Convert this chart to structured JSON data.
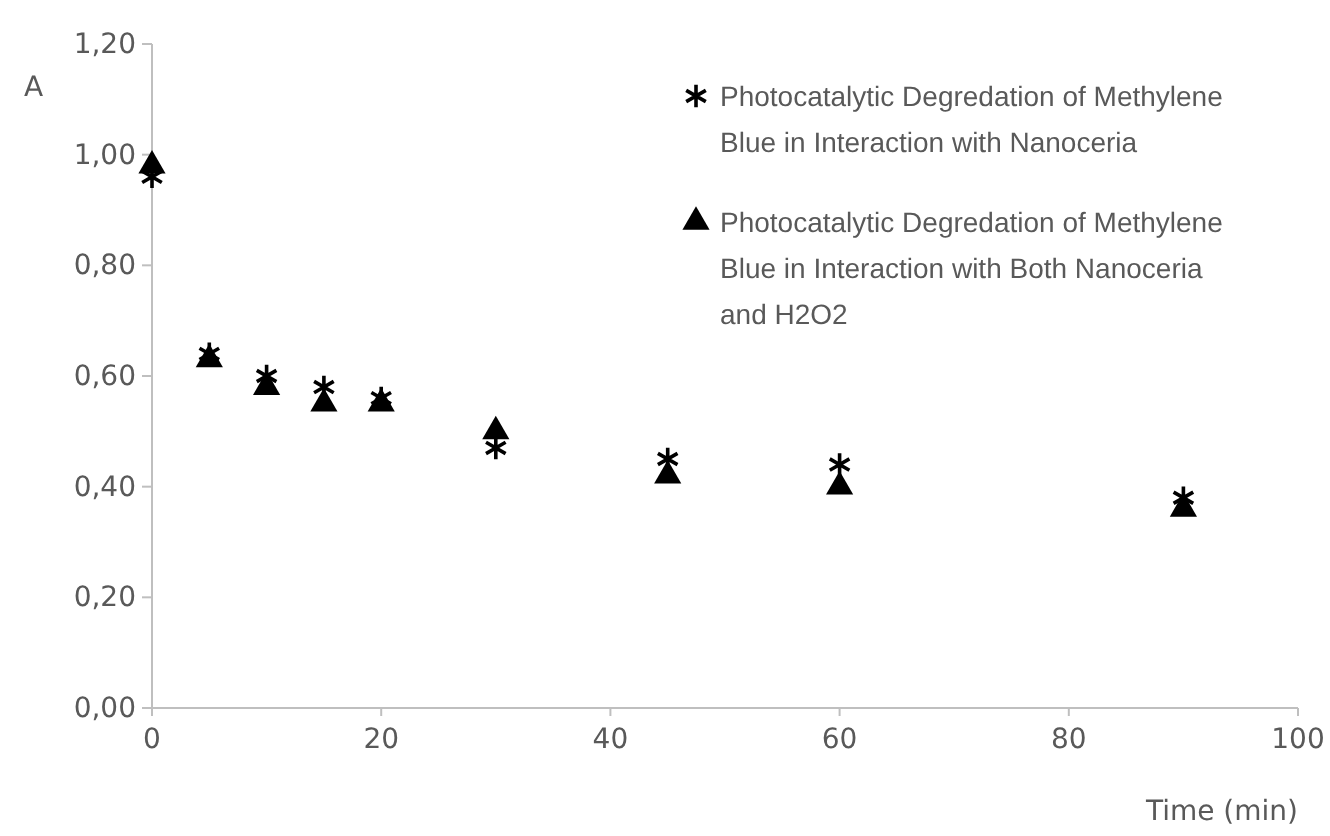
{
  "chart_data": {
    "type": "scatter",
    "xlabel": "Time (min)",
    "ylabel": "A",
    "xlim": [
      0,
      100
    ],
    "xticks": [
      0,
      20,
      40,
      60,
      80,
      100
    ],
    "ylim": [
      0,
      1.2
    ],
    "yticks": [
      {
        "value": 0,
        "label": "0,00"
      },
      {
        "value": 0.2,
        "label": "0,20"
      },
      {
        "value": 0.4,
        "label": "0,40"
      },
      {
        "value": 0.6,
        "label": "0,60"
      },
      {
        "value": 0.8,
        "label": "0,80"
      },
      {
        "value": 1.0,
        "label": "1,00"
      },
      {
        "value": 1.2,
        "label": "1,20"
      }
    ],
    "x": [
      0,
      5,
      10,
      15,
      20,
      30,
      45,
      60,
      90
    ],
    "series": [
      {
        "name": "Photocatalytic Degredation of Methylene Blue in Interaction with Nanoceria",
        "color": "#000000",
        "marker": "cross",
        "values": [
          0.96,
          0.64,
          0.6,
          0.58,
          0.56,
          0.47,
          0.45,
          0.44,
          0.38
        ]
      },
      {
        "name": "Photocatalytic Degredation of Methylene Blue in Interaction with Both Nanoceria and H2O2",
        "color": "#000000",
        "marker": "triangle",
        "values": [
          0.98,
          0.63,
          0.58,
          0.55,
          0.55,
          0.5,
          0.42,
          0.4,
          0.36
        ]
      }
    ],
    "legend": "top right",
    "grid": false
  }
}
